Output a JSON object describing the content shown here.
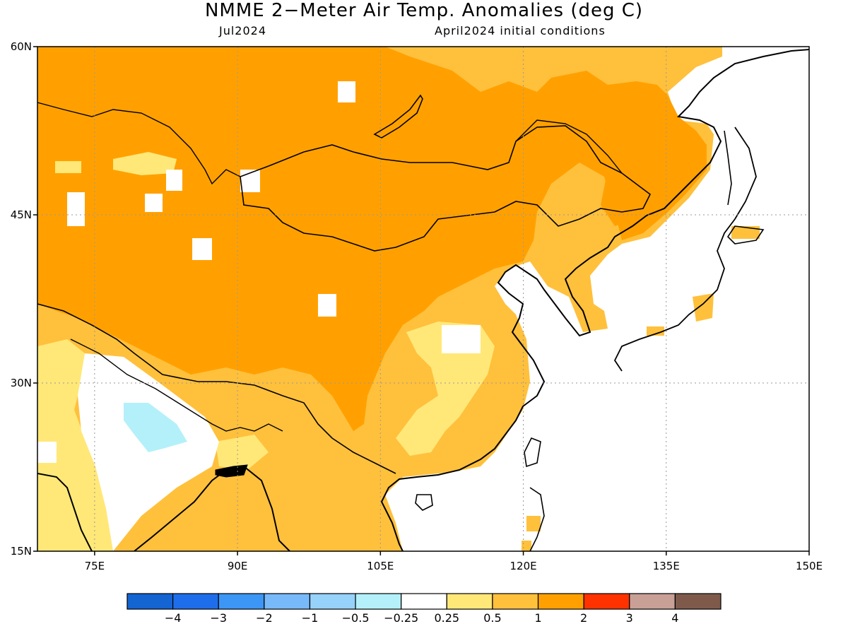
{
  "title": "NMME 2−Meter Air Temp. Anomalies (deg C)",
  "subtitle_left": "Jul2024",
  "subtitle_right": "April2024 initial conditions",
  "map": {
    "lon_range": [
      69,
      150
    ],
    "lat_range": [
      15,
      60
    ],
    "lat_ticks": [
      {
        "value": 60,
        "label": "60N"
      },
      {
        "value": 45,
        "label": "45N"
      },
      {
        "value": 30,
        "label": "30N"
      },
      {
        "value": 15,
        "label": "15N"
      }
    ],
    "lon_ticks": [
      {
        "value": 75,
        "label": "75E"
      },
      {
        "value": 90,
        "label": "90E"
      },
      {
        "value": 105,
        "label": "105E"
      },
      {
        "value": 120,
        "label": "120E"
      },
      {
        "value": 135,
        "label": "135E"
      },
      {
        "value": 150,
        "label": "150E"
      }
    ],
    "grid": "dotted"
  },
  "colorbar": {
    "colors": [
      "#1464d2",
      "#1e6eeb",
      "#3c96f5",
      "#78b9fa",
      "#96d2fa",
      "#b4f0fa",
      "#ffffff",
      "#ffe878",
      "#ffc03c",
      "#ffa000",
      "#ff3200",
      "#c8a096",
      "#7f5a4b"
    ],
    "labels": [
      "−4",
      "−3",
      "−2",
      "−1",
      "−0.5",
      "−0.25",
      "0.25",
      "0.5",
      "1",
      "2",
      "3",
      "4"
    ]
  }
}
